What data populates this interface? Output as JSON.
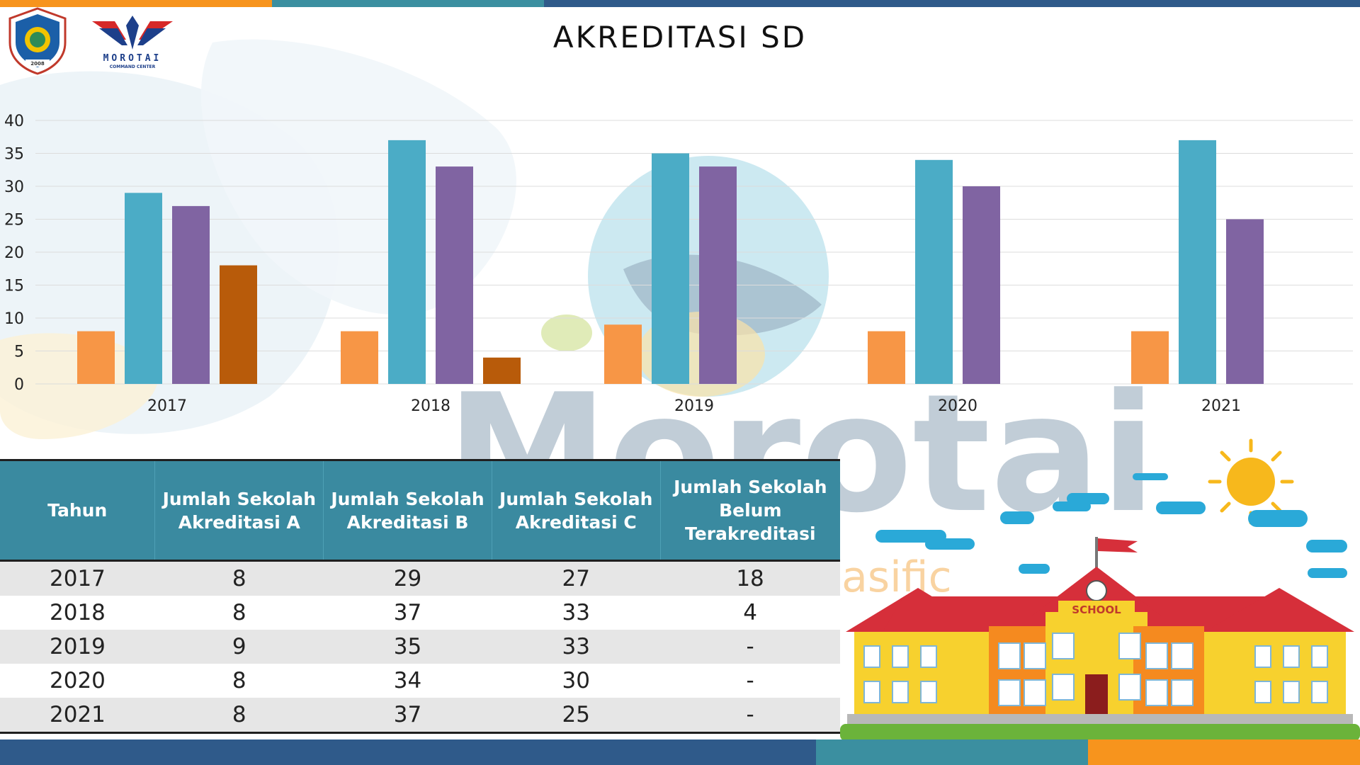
{
  "title": "AKREDITASI SD",
  "logos": {
    "brand_text": "MOROTAI",
    "brand_subtext": "COMMAND CENTER",
    "seal_year": "2008"
  },
  "colors": {
    "series_a": "#F79646",
    "series_b": "#4BACC6",
    "series_c": "#8064A2",
    "series_belum": "#B85B0A",
    "table_header": "#3A8AA0",
    "bar_blue": "#2F5A8A",
    "bar_teal": "#3B8FA0",
    "bar_orange": "#F7941D"
  },
  "chart_data": {
    "type": "bar",
    "categories": [
      "2017",
      "2018",
      "2019",
      "2020",
      "2021"
    ],
    "series": [
      {
        "values": [
          8,
          8,
          9,
          8,
          8
        ]
      },
      {
        "values": [
          29,
          37,
          35,
          34,
          37
        ]
      },
      {
        "values": [
          27,
          33,
          33,
          30,
          25
        ]
      },
      {
        "values": [
          18,
          4,
          null,
          null,
          null
        ]
      }
    ],
    "ylim": [
      0,
      40
    ],
    "yticks": [
      "0",
      "5",
      "10",
      "15",
      "20",
      "25",
      "30",
      "35",
      "40"
    ],
    "grid": true,
    "legend": "none"
  },
  "table": {
    "headers": [
      "Tahun",
      "Jumlah Sekolah Akreditasi A",
      "Jumlah Sekolah Akreditasi B",
      "Jumlah Sekolah Akreditasi C",
      "Jumlah Sekolah Belum Terakreditasi"
    ],
    "rows": [
      [
        "2017",
        "8",
        "29",
        "27",
        "18"
      ],
      [
        "2018",
        "8",
        "37",
        "33",
        "4"
      ],
      [
        "2019",
        "9",
        "35",
        "33",
        "-"
      ],
      [
        "2020",
        "8",
        "34",
        "30",
        "-"
      ],
      [
        "2021",
        "8",
        "37",
        "25",
        "-"
      ]
    ]
  },
  "illustration": {
    "school_sign": "SCHOOL"
  },
  "watermark": {
    "word": "Morotai",
    "sub": "pasific"
  }
}
